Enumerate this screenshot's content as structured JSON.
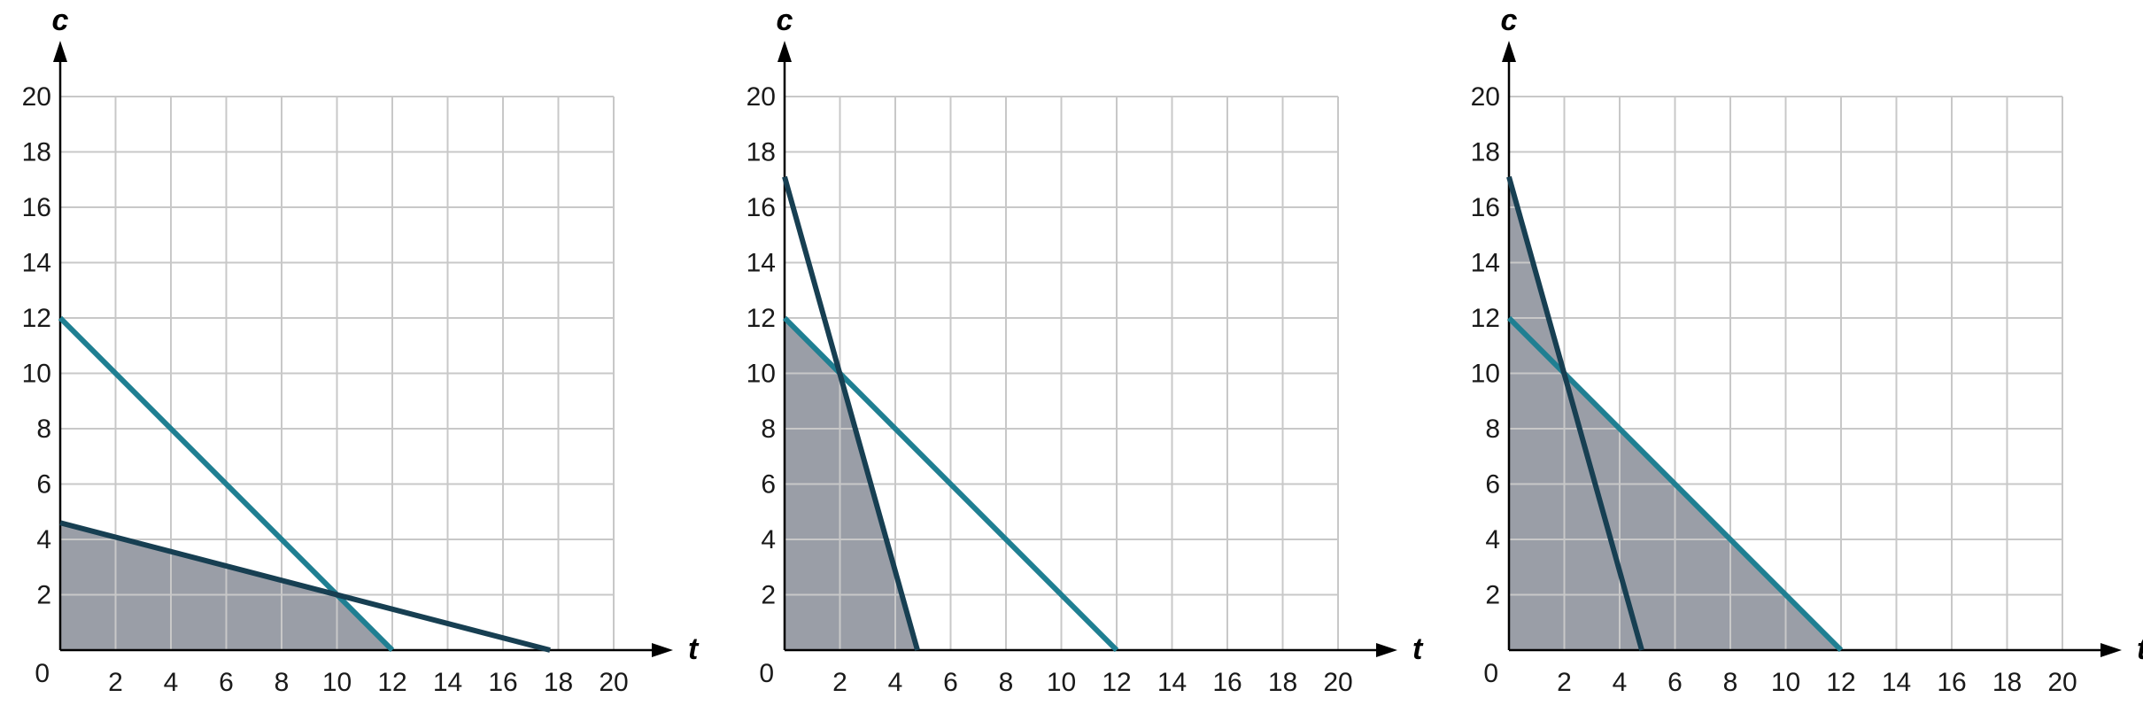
{
  "colors": {
    "teal_line": "#1f7f92",
    "navy_line": "#173f52",
    "feasible_fill": "#9a9ea7",
    "grid": "#c8c8c8",
    "axis": "#000000"
  },
  "chart_data": [
    {
      "type": "line",
      "xlabel": "t",
      "ylabel": "c",
      "origin_label": "0",
      "xlim": [
        0,
        20
      ],
      "ylim": [
        0,
        20
      ],
      "grid": true,
      "x_ticks": [
        "2",
        "4",
        "6",
        "8",
        "10",
        "12",
        "14",
        "16",
        "18",
        "20"
      ],
      "y_ticks": [
        "2",
        "4",
        "6",
        "8",
        "10",
        "12",
        "14",
        "16",
        "18",
        "20"
      ],
      "series": [
        {
          "color": "#1f7f92",
          "points": [
            [
              0,
              12
            ],
            [
              12,
              0
            ]
          ]
        },
        {
          "color": "#173f52",
          "points": [
            [
              0,
              4.6
            ],
            [
              17.7,
              0
            ]
          ]
        }
      ],
      "shaded_region": [
        [
          0,
          0
        ],
        [
          0,
          4.6
        ],
        [
          10,
          2
        ],
        [
          12,
          0
        ]
      ]
    },
    {
      "type": "line",
      "xlabel": "t",
      "ylabel": "c",
      "origin_label": "0",
      "xlim": [
        0,
        20
      ],
      "ylim": [
        0,
        20
      ],
      "grid": true,
      "x_ticks": [
        "2",
        "4",
        "6",
        "8",
        "10",
        "12",
        "14",
        "16",
        "18",
        "20"
      ],
      "y_ticks": [
        "2",
        "4",
        "6",
        "8",
        "10",
        "12",
        "14",
        "16",
        "18",
        "20"
      ],
      "series": [
        {
          "color": "#1f7f92",
          "points": [
            [
              0,
              12
            ],
            [
              12,
              0
            ]
          ]
        },
        {
          "color": "#173f52",
          "points": [
            [
              0,
              17.1
            ],
            [
              4.8,
              0
            ]
          ]
        }
      ],
      "shaded_region": [
        [
          0,
          0
        ],
        [
          0,
          12
        ],
        [
          2,
          10
        ],
        [
          4.8,
          0
        ]
      ]
    },
    {
      "type": "line",
      "xlabel": "t",
      "ylabel": "c",
      "origin_label": "0",
      "xlim": [
        0,
        20
      ],
      "ylim": [
        0,
        20
      ],
      "grid": true,
      "x_ticks": [
        "2",
        "4",
        "6",
        "8",
        "10",
        "12",
        "14",
        "16",
        "18",
        "20"
      ],
      "y_ticks": [
        "2",
        "4",
        "6",
        "8",
        "10",
        "12",
        "14",
        "16",
        "18",
        "20"
      ],
      "series": [
        {
          "color": "#1f7f92",
          "points": [
            [
              0,
              12
            ],
            [
              12,
              0
            ]
          ]
        },
        {
          "color": "#173f52",
          "points": [
            [
              0,
              17.1
            ],
            [
              4.8,
              0
            ]
          ]
        }
      ],
      "shaded_region": [
        [
          0,
          0
        ],
        [
          0,
          17.1
        ],
        [
          2,
          10
        ],
        [
          12,
          0
        ]
      ]
    }
  ]
}
